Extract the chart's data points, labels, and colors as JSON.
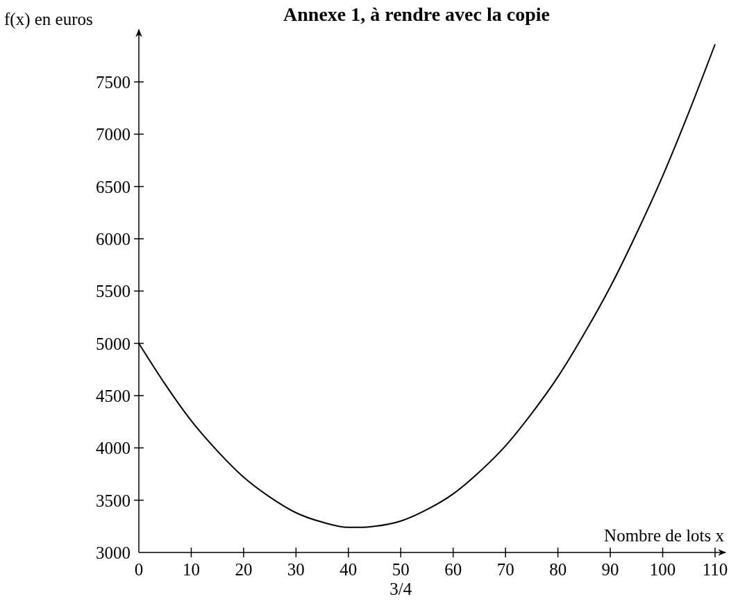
{
  "chart_data": {
    "type": "line",
    "title": "Annexe 1, à rendre avec la copie",
    "xlabel": "Nombre de lots x",
    "ylabel": "f(x) en euros",
    "annotations": [
      "3/4"
    ],
    "x": [
      0,
      5,
      10,
      15,
      20,
      25,
      30,
      35,
      40,
      42,
      45,
      50,
      55,
      60,
      65,
      70,
      75,
      80,
      85,
      90,
      95,
      100,
      105,
      110
    ],
    "series": [
      {
        "color": "#000000",
        "values": [
          5000,
          4610,
          4260,
          3970,
          3720,
          3530,
          3380,
          3290,
          3240,
          3240,
          3250,
          3300,
          3410,
          3560,
          3770,
          4020,
          4330,
          4680,
          5090,
          5540,
          6050,
          6600,
          7210,
          7860
        ]
      }
    ],
    "xlim": [
      0,
      112
    ],
    "xticks": [
      0,
      10,
      20,
      30,
      40,
      50,
      60,
      70,
      80,
      90,
      100,
      110
    ],
    "ylim": [
      3000,
      8000
    ],
    "yticks": [
      3000,
      3500,
      4000,
      4500,
      5000,
      5500,
      6000,
      6500,
      7000,
      7500
    ],
    "grid": false,
    "marker": "none",
    "line_style": "solid"
  }
}
